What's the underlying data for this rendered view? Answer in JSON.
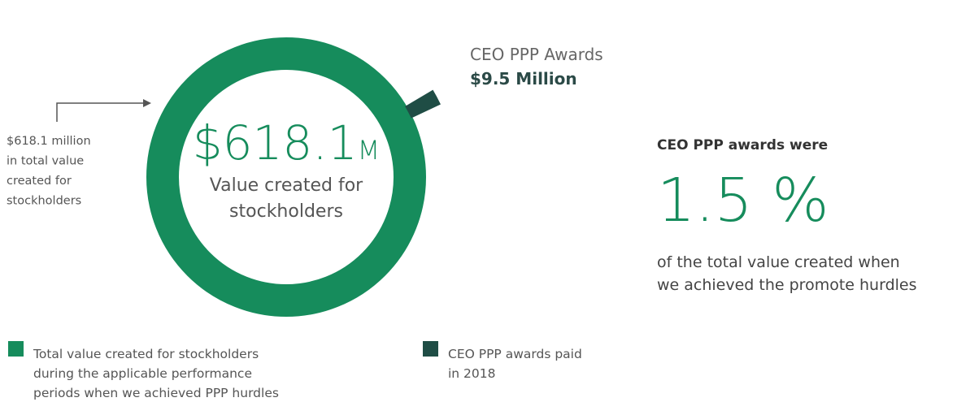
{
  "chart_data": {
    "type": "donut",
    "series": [
      {
        "name": [
          "Total value created for stockholders",
          "during the applicable performance",
          "periods when we achieved PPP hurdles"
        ],
        "color": "#168c5c",
        "value": 618.1
      },
      {
        "name": [
          "CEO PPP awards paid",
          "in 2018"
        ],
        "color": "#1f4d45",
        "value": 9.5
      }
    ],
    "center_amount": "$618.1",
    "center_unit": "M",
    "center_caption": [
      "Value created for",
      "stockholders"
    ],
    "slice_title": "CEO PPP Awards",
    "slice_label": "$9.5 Million",
    "left_annotation": [
      "$618.1 million",
      "in total value",
      "created for",
      "stockholders"
    ],
    "side_heading": "CEO PPP awards were",
    "side_figure": "1.5 %",
    "side_text": [
      "of the total value created when",
      "we achieved the promote hurdles"
    ]
  }
}
